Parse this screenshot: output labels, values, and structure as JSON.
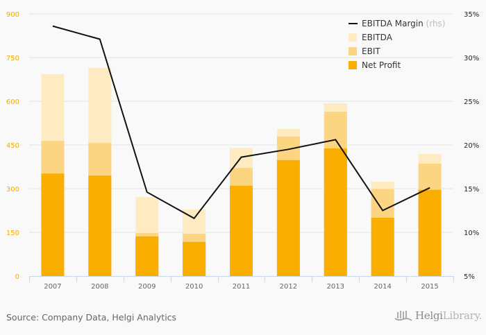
{
  "chart_data": {
    "type": "bar",
    "subtype": "overlapping-bar-with-line",
    "title": "",
    "xlabel": "",
    "ylabel": "",
    "categories": [
      "2007",
      "2008",
      "2009",
      "2010",
      "2011",
      "2012",
      "2013",
      "2014",
      "2015"
    ],
    "series": [
      {
        "name": "EBITDA",
        "type": "bar",
        "axis": "left",
        "color": "#feebc1",
        "values": [
          693,
          714,
          271,
          229,
          440,
          505,
          593,
          324,
          419
        ]
      },
      {
        "name": "EBIT",
        "type": "bar",
        "axis": "left",
        "color": "#fcd582",
        "values": [
          464,
          457,
          148,
          145,
          371,
          479,
          564,
          299,
          386
        ]
      },
      {
        "name": "Net Profit",
        "type": "bar",
        "axis": "left",
        "color": "#f9ae00",
        "values": [
          352,
          345,
          136,
          117,
          310,
          398,
          438,
          200,
          296
        ]
      },
      {
        "name": "EBITDA Margin",
        "legend_suffix": "(rhs)",
        "type": "line",
        "axis": "right",
        "color": "#111111",
        "values": [
          33.6,
          32.1,
          14.6,
          11.6,
          18.6,
          19.5,
          20.6,
          12.5,
          15.1
        ]
      }
    ],
    "y_left": {
      "ylim": [
        0,
        900
      ],
      "ticks": [
        0,
        150,
        300,
        450,
        600,
        750,
        900
      ],
      "color": "#f4aa00"
    },
    "y_right": {
      "ylim": [
        5,
        35
      ],
      "ticks": [
        "5%",
        "10%",
        "15%",
        "20%",
        "25%",
        "30%",
        "35%"
      ]
    },
    "grid": true,
    "legend_placement": "top-right"
  },
  "footer": {
    "source": "Source: Company Data, Helgi Analytics",
    "brand_main": "Helgi",
    "brand_sub": "Library."
  }
}
